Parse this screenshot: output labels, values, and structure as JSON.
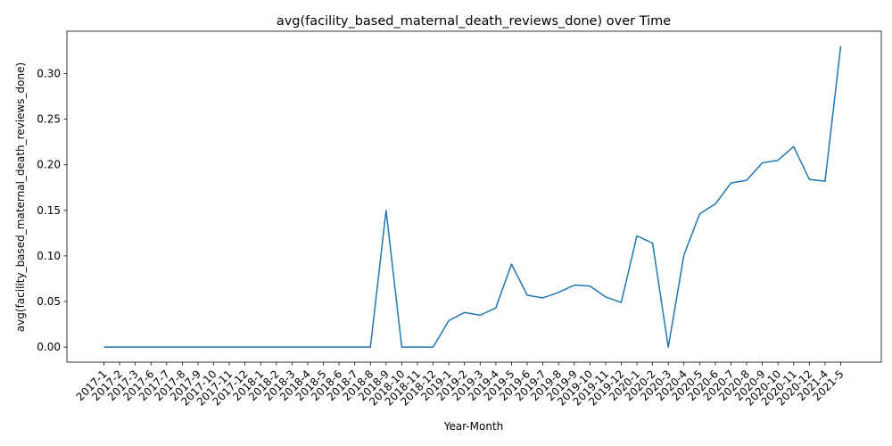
{
  "chart_data": {
    "type": "line",
    "title": "avg(facility_based_maternal_death_reviews_done) over Time",
    "xlabel": "Year-Month",
    "ylabel": "avg(facility_based_maternal_death_reviews_done)",
    "ylim": [
      -0.0165,
      0.3465
    ],
    "yticks": [
      0.0,
      0.05,
      0.1,
      0.15,
      0.2,
      0.25,
      0.3
    ],
    "ytick_labels": [
      "0.00",
      "0.05",
      "0.10",
      "0.15",
      "0.20",
      "0.25",
      "0.30"
    ],
    "grid": false,
    "line_color": "#1f77b4",
    "categories": [
      "2017-1",
      "2017-2",
      "2017-3",
      "2017-6",
      "2017-7",
      "2017-8",
      "2017-9",
      "2017-10",
      "2017-11",
      "2017-12",
      "2018-1",
      "2018-2",
      "2018-3",
      "2018-4",
      "2018-5",
      "2018-6",
      "2018-7",
      "2018-8",
      "2018-9",
      "2018-10",
      "2018-11",
      "2018-12",
      "2019-1",
      "2019-2",
      "2019-3",
      "2019-4",
      "2019-5",
      "2019-6",
      "2019-7",
      "2019-8",
      "2019-9",
      "2019-10",
      "2019-11",
      "2019-12",
      "2020-1",
      "2020-2",
      "2020-3",
      "2020-4",
      "2020-5",
      "2020-6",
      "2020-7",
      "2020-8",
      "2020-9",
      "2020-10",
      "2020-11",
      "2020-12",
      "2021-4",
      "2021-5"
    ],
    "values": [
      0,
      0,
      0,
      0,
      0,
      0,
      0,
      0,
      0,
      0,
      0,
      0,
      0,
      0,
      0,
      0,
      0,
      0,
      0.15,
      0,
      0,
      0,
      0.029,
      0.038,
      0.035,
      0.043,
      0.091,
      0.057,
      0.054,
      0.06,
      0.068,
      0.067,
      0.055,
      0.049,
      0.122,
      0.114,
      0,
      0.101,
      0.146,
      0.157,
      0.18,
      0.183,
      0.202,
      0.205,
      0.22,
      0.184,
      0.182,
      0.33
    ]
  }
}
